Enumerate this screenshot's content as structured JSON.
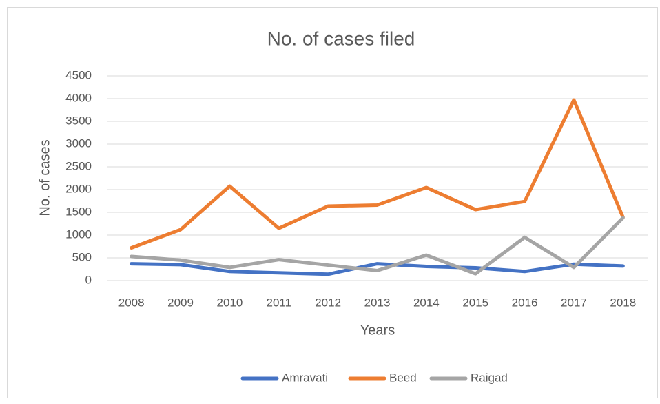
{
  "chart_data": {
    "type": "line",
    "title": "No. of cases filed",
    "x_label": "Years",
    "y_label": "No. of cases",
    "categories": [
      "2008",
      "2009",
      "2010",
      "2011",
      "2012",
      "2013",
      "2014",
      "2015",
      "2016",
      "2017",
      "2018"
    ],
    "series": [
      {
        "name": "Amravati",
        "color": "#4472c4",
        "values": [
          370,
          350,
          200,
          170,
          140,
          370,
          310,
          280,
          200,
          360,
          320
        ]
      },
      {
        "name": "Beed",
        "color": "#ed7d31",
        "values": [
          720,
          1120,
          2075,
          1150,
          1636,
          1660,
          2045,
          1560,
          1740,
          3970,
          1390
        ]
      },
      {
        "name": "Raigad",
        "color": "#a5a5a5",
        "values": [
          530,
          450,
          290,
          460,
          340,
          220,
          560,
          150,
          950,
          290,
          1380
        ]
      }
    ],
    "ylim": [
      0,
      4500
    ],
    "yticks": [
      0,
      500,
      1000,
      1500,
      2000,
      2500,
      3000,
      3500,
      4000,
      4500
    ],
    "grid": true,
    "legend": "bottom"
  }
}
